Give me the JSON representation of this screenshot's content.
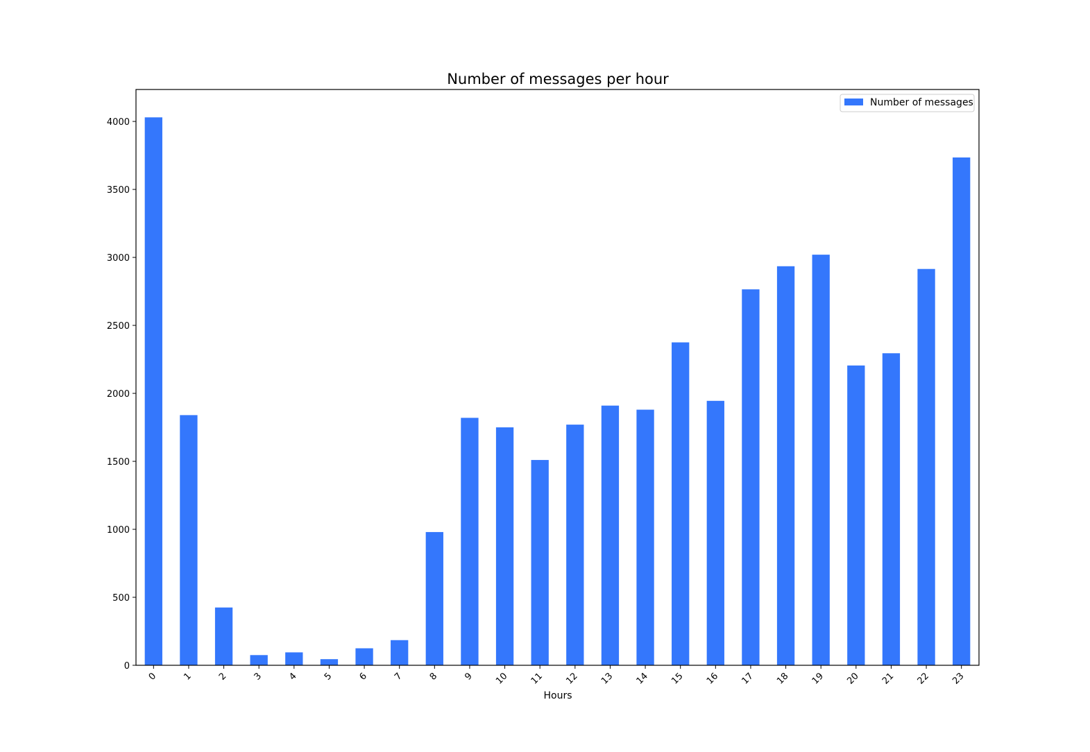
{
  "chart_data": {
    "type": "bar",
    "title": "Number of messages per hour",
    "xlabel": "Hours",
    "ylabel": "",
    "categories": [
      "0",
      "1",
      "2",
      "3",
      "4",
      "5",
      "6",
      "7",
      "8",
      "9",
      "10",
      "11",
      "12",
      "13",
      "14",
      "15",
      "16",
      "17",
      "18",
      "19",
      "20",
      "21",
      "22",
      "23"
    ],
    "series": [
      {
        "name": "Number of messages",
        "values": [
          4030,
          1840,
          425,
          75,
          95,
          45,
          125,
          185,
          980,
          1820,
          1750,
          1510,
          1770,
          1910,
          1880,
          2375,
          1945,
          2765,
          2935,
          3020,
          2205,
          2295,
          2915,
          3735
        ],
        "color": "#3477fc"
      }
    ],
    "ylim": [
      0,
      4235
    ],
    "yticks": [
      0,
      500,
      1000,
      1500,
      2000,
      2500,
      3000,
      3500,
      4000
    ],
    "grid": false,
    "legend_position": "top-right",
    "x_tick_rotation": 45
  }
}
